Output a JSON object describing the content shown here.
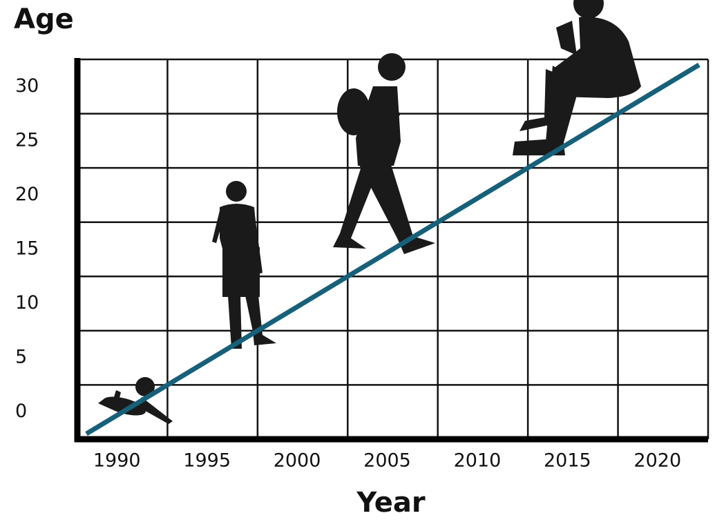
{
  "chart_data": {
    "type": "line",
    "y_label": "Age",
    "x_label": "Year",
    "x": [
      1988,
      2022
    ],
    "series": [
      {
        "name": "Age",
        "color": "#17607a",
        "values": [
          -2,
          32
        ]
      }
    ],
    "xlim": [
      1987.5,
      2022.5
    ],
    "ylim": [
      -2.5,
      32.5
    ],
    "xticks": [
      1990,
      1995,
      2000,
      2005,
      2010,
      2015,
      2020
    ],
    "yticks": [
      0,
      5,
      10,
      15,
      20,
      25,
      30
    ],
    "grid": true
  }
}
